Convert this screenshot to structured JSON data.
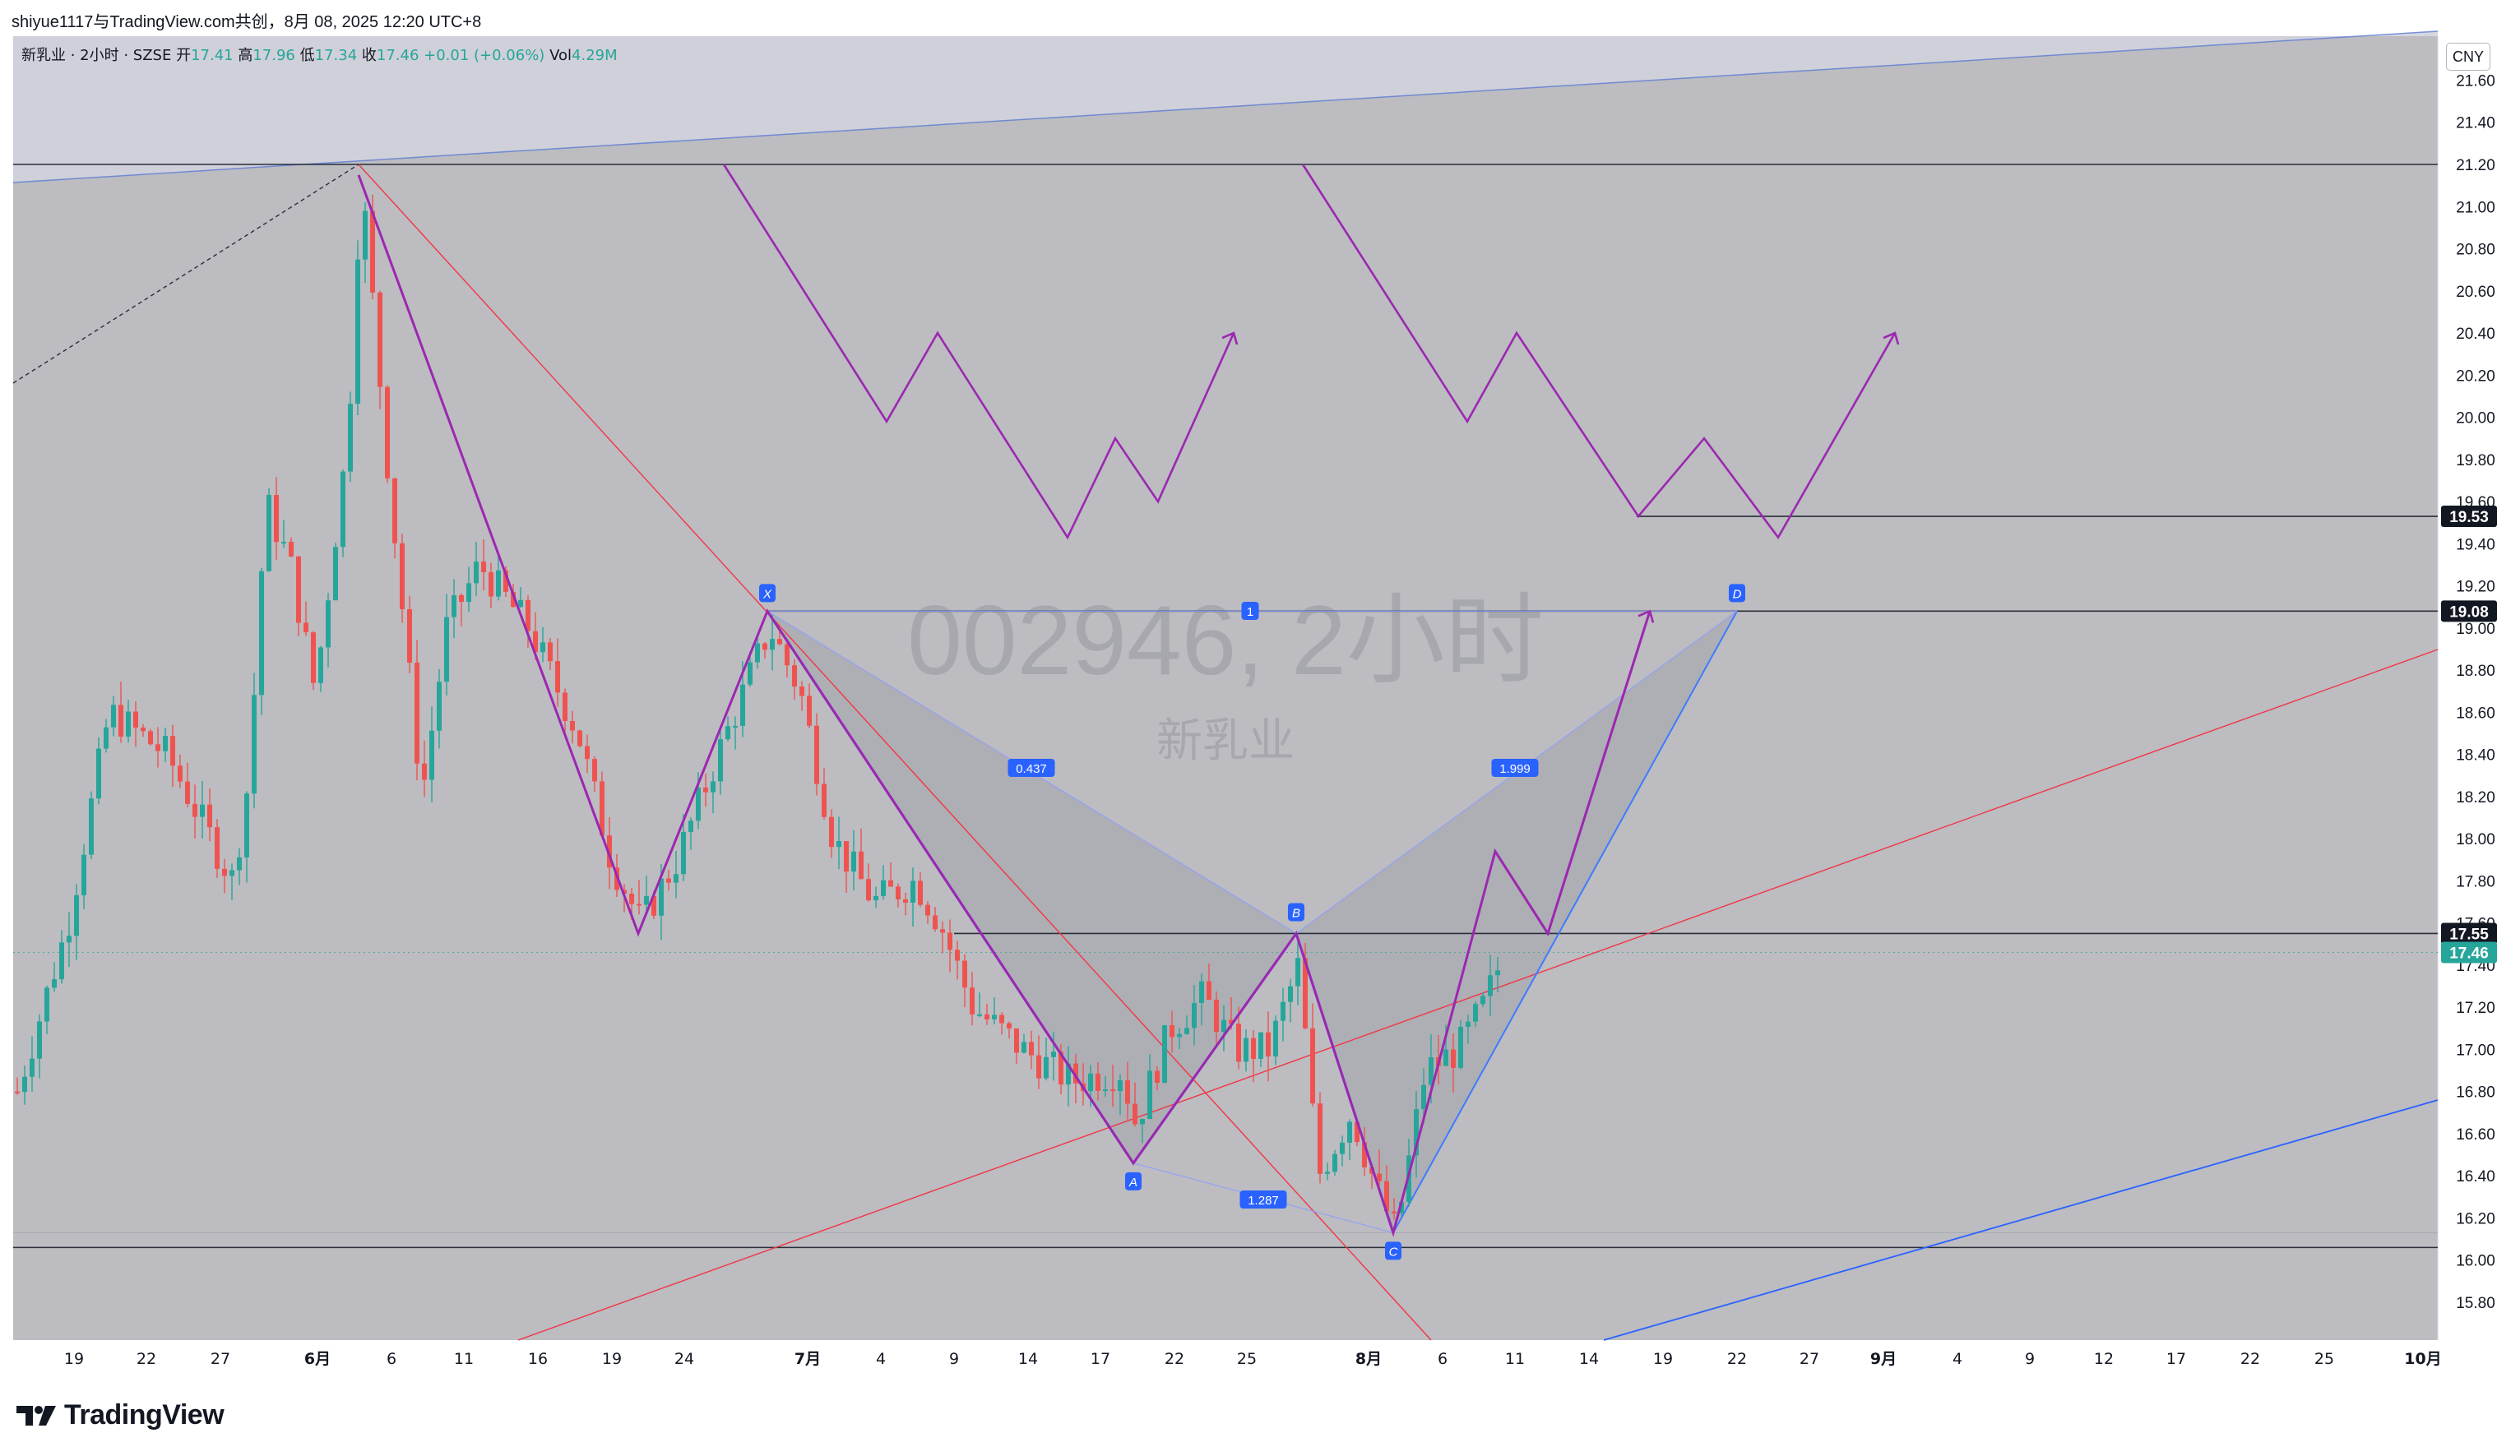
{
  "header": {
    "attribution": "shiyue1117与TradingView.com共创，8月 08, 2025 12:20 UTC+8"
  },
  "legend": {
    "name": "新乳业 · 2小时 · SZSE",
    "open_label": "开",
    "open": "17.41",
    "high_label": "高",
    "high": "17.96",
    "low_label": "低",
    "low": "17.34",
    "close_label": "收",
    "close": "17.46",
    "change": "+0.01 (+0.06%)",
    "vol_label": "Vol",
    "vol": "4.29M"
  },
  "watermark": {
    "symbol": "002946, 2小时",
    "name": "新乳业"
  },
  "currency_button": "CNY",
  "footer": {
    "brand": "TradingView"
  },
  "colors": {
    "up": "#26a69a",
    "down": "#ef5350",
    "pattern": "#3d5afe",
    "projection": "#9c27b0",
    "trend_red": "#f23645",
    "trend_blue": "#2962ff",
    "background": "#bcbcc1",
    "upper_band": "#d0d2db"
  },
  "chart_data": {
    "type": "candlestick",
    "symbol": "002946",
    "exchange": "SZSE",
    "interval": "2小时",
    "currency": "CNY",
    "y_axis": {
      "ylim": [
        15.7,
        21.75
      ],
      "ticks": [
        "15.80",
        "16.00",
        "16.20",
        "16.40",
        "16.60",
        "16.80",
        "17.00",
        "17.20",
        "17.40",
        "17.60",
        "17.80",
        "18.00",
        "18.20",
        "18.40",
        "18.60",
        "18.80",
        "19.00",
        "19.20",
        "19.40",
        "19.60",
        "19.80",
        "20.00",
        "20.20",
        "20.40",
        "20.60",
        "20.80",
        "21.00",
        "21.20",
        "21.40",
        "21.60"
      ]
    },
    "x_axis": {
      "ticks": [
        "19",
        "22",
        "27",
        "6月",
        "6",
        "11",
        "16",
        "19",
        "24",
        "7月",
        "4",
        "9",
        "14",
        "17",
        "22",
        "25",
        "8月",
        "6",
        "11",
        "14",
        "19",
        "22",
        "27",
        "9月",
        "4",
        "9",
        "12",
        "17",
        "22",
        "25",
        "10月"
      ]
    },
    "price_labels": [
      {
        "value": "19.53",
        "style": "dark"
      },
      {
        "value": "19.08",
        "style": "dark"
      },
      {
        "value": "17.55",
        "style": "dark"
      },
      {
        "value": "17.46",
        "style": "current"
      }
    ],
    "horizontal_levels": [
      21.2,
      19.53,
      19.08,
      17.55,
      16.06
    ],
    "harmonic_pattern": {
      "points": [
        {
          "label": "X",
          "price": 19.08
        },
        {
          "label": "A",
          "price": 16.46
        },
        {
          "label": "B",
          "price": 17.55
        },
        {
          "label": "C",
          "price": 16.13
        },
        {
          "label": "D",
          "price": 19.08
        }
      ],
      "ratios": [
        "0.437",
        "1.287",
        "1.999",
        "1"
      ]
    },
    "price_range_note": "Close series approx. 17.2 → 21.2 peak → 16.13 low → 17.46 last"
  }
}
